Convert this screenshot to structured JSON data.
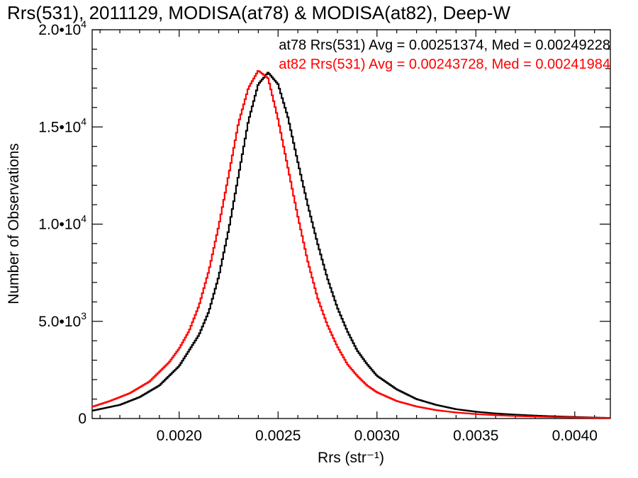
{
  "chart_data": {
    "type": "line",
    "title": "Rrs(531), 2011129, MODISA(at78) & MODISA(at82), Deep-W",
    "xlabel": "Rrs (str⁻¹)",
    "ylabel": "Number of Observations",
    "xlim": [
      0.00156,
      0.00418
    ],
    "ylim": [
      0,
      20000
    ],
    "xticks": [
      {
        "value": 0.002,
        "label": "0.0020"
      },
      {
        "value": 0.0025,
        "label": "0.0025"
      },
      {
        "value": 0.003,
        "label": "0.0030"
      },
      {
        "value": 0.0035,
        "label": "0.0035"
      },
      {
        "value": 0.004,
        "label": "0.0040"
      }
    ],
    "yticks": [
      {
        "value": 0,
        "mant": "0",
        "exp": ""
      },
      {
        "value": 5000,
        "mant": "5.0•10",
        "exp": "3"
      },
      {
        "value": 10000,
        "mant": "1.0•10",
        "exp": "4"
      },
      {
        "value": 15000,
        "mant": "1.5•10",
        "exp": "4"
      },
      {
        "value": 20000,
        "mant": "2.0•10",
        "exp": "4"
      }
    ],
    "grid": false,
    "legend_position": "top-right",
    "series": [
      {
        "name": "at78",
        "color": "#000000",
        "legend": "at78 Rrs(531) Avg = 0.00251374, Med = 0.00249228",
        "x": [
          0.00156,
          0.0017,
          0.0018,
          0.0019,
          0.002,
          0.0021,
          0.00215,
          0.0022,
          0.00225,
          0.0023,
          0.00235,
          0.0024,
          0.00245,
          0.0025,
          0.00255,
          0.0026,
          0.00265,
          0.0027,
          0.00275,
          0.0028,
          0.00285,
          0.0029,
          0.00295,
          0.003,
          0.0031,
          0.0032,
          0.0033,
          0.0034,
          0.0035,
          0.0036,
          0.0037,
          0.0038,
          0.0039,
          0.004,
          0.0041,
          0.00418
        ],
        "y": [
          400,
          700,
          1100,
          1700,
          2700,
          4300,
          5500,
          7300,
          9700,
          12500,
          15300,
          17200,
          17800,
          17200,
          15500,
          13200,
          11000,
          9000,
          7200,
          5700,
          4500,
          3500,
          2800,
          2200,
          1500,
          1000,
          700,
          480,
          350,
          260,
          200,
          150,
          110,
          80,
          50,
          30
        ]
      },
      {
        "name": "at82",
        "color": "#ff0000",
        "legend": "at82 Rrs(531) Avg = 0.00243728, Med = 0.00241984",
        "x": [
          0.00156,
          0.00165,
          0.00175,
          0.00185,
          0.00195,
          0.002,
          0.00205,
          0.0021,
          0.00215,
          0.0022,
          0.00225,
          0.0023,
          0.00235,
          0.0024,
          0.00245,
          0.0025,
          0.00255,
          0.0026,
          0.00265,
          0.0027,
          0.00275,
          0.0028,
          0.00285,
          0.0029,
          0.00295,
          0.003,
          0.0031,
          0.0032,
          0.0033,
          0.0034,
          0.0035,
          0.0036,
          0.0037,
          0.0038,
          0.0039,
          0.004,
          0.0041,
          0.00418
        ],
        "y": [
          600,
          900,
          1300,
          1900,
          2900,
          3600,
          4500,
          5800,
          7600,
          9900,
          12500,
          15200,
          17000,
          17900,
          17500,
          15400,
          12900,
          10400,
          8100,
          6200,
          4800,
          3700,
          2800,
          2200,
          1700,
          1350,
          900,
          620,
          430,
          310,
          230,
          170,
          130,
          100,
          75,
          55,
          40,
          25
        ]
      }
    ]
  }
}
